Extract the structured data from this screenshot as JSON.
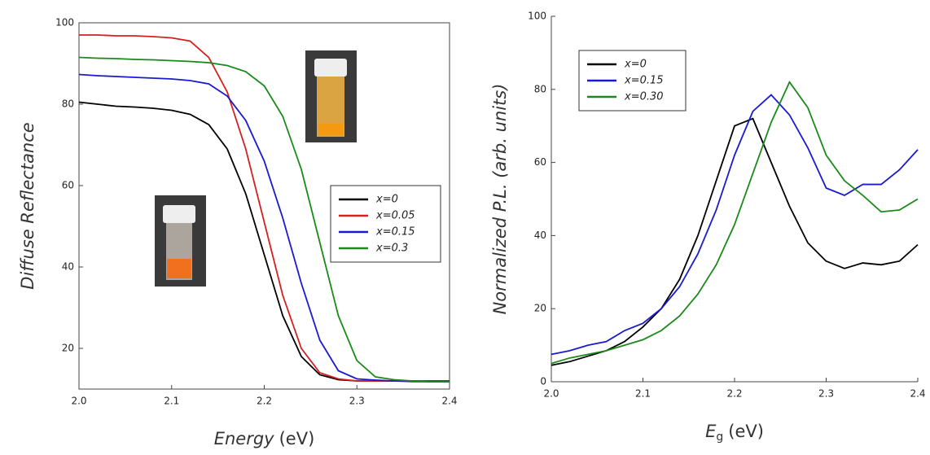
{
  "chart_data": [
    {
      "type": "line",
      "ylabel": "Diffuse Reflectance",
      "xlabel": "Energy",
      "xlabel_unit": "(eV)",
      "x": [
        2.0,
        2.02,
        2.04,
        2.06,
        2.08,
        2.1,
        2.12,
        2.14,
        2.16,
        2.18,
        2.2,
        2.22,
        2.24,
        2.26,
        2.28,
        2.3,
        2.32,
        2.34,
        2.36,
        2.38,
        2.4
      ],
      "series": [
        {
          "name": "x=0",
          "color": "#000000",
          "values": [
            80.5,
            80,
            79.5,
            79.3,
            79,
            78.5,
            77.5,
            75,
            69,
            58,
            43,
            28,
            18,
            13.5,
            12.3,
            12,
            12,
            12,
            12,
            11.8,
            11.8
          ]
        },
        {
          "name": "x=0.05",
          "color": "#d42020",
          "values": [
            97,
            97,
            96.8,
            96.8,
            96.6,
            96.3,
            95.5,
            91.5,
            83,
            69,
            51,
            33,
            20,
            14,
            12.5,
            12,
            12,
            12,
            11.8,
            11.8,
            11.8
          ]
        },
        {
          "name": "x=0.15",
          "color": "#1a1ad0",
          "values": [
            87.3,
            87,
            86.8,
            86.6,
            86.4,
            86.2,
            85.8,
            85,
            82,
            76,
            66,
            52,
            36,
            22,
            14.5,
            12.5,
            12.2,
            12,
            12,
            12,
            12
          ]
        },
        {
          "name": "x=0.3",
          "color": "#1a8a1a",
          "values": [
            91.5,
            91.3,
            91.2,
            91,
            90.9,
            90.7,
            90.5,
            90.2,
            89.5,
            88,
            84.5,
            77,
            64,
            46,
            28,
            17,
            13,
            12.3,
            12,
            11.8,
            11.8
          ]
        }
      ],
      "xlim": [
        2.0,
        2.4
      ],
      "ylim": [
        10,
        100
      ],
      "xticks": [
        {
          "value": 2.0,
          "label": "2.0"
        },
        2.1,
        2.2,
        2.3,
        2.4
      ],
      "yticks": [
        20,
        40,
        60,
        80,
        100
      ],
      "legend": "center right",
      "frame": true
    },
    {
      "type": "line",
      "ylabel": "Normalized P.L. (arb. units)",
      "xlabel": "E",
      "xlabel_subscript": "g",
      "xlabel_unit": "(eV)",
      "x": [
        2.0,
        2.02,
        2.04,
        2.06,
        2.08,
        2.1,
        2.12,
        2.14,
        2.16,
        2.18,
        2.2,
        2.22,
        2.24,
        2.26,
        2.28,
        2.3,
        2.32,
        2.34,
        2.36,
        2.38,
        2.4
      ],
      "series": [
        {
          "name": "x=0",
          "color": "#000000",
          "values": [
            4.5,
            5.5,
            7,
            8.5,
            11,
            15,
            20,
            28,
            40,
            55,
            70,
            72,
            60,
            48,
            38,
            33,
            31,
            32.5,
            32,
            33,
            37.5
          ]
        },
        {
          "name": "x=0.15",
          "color": "#1a1ad0",
          "values": [
            7.5,
            8.5,
            10,
            11,
            14,
            16,
            20,
            26,
            35,
            47,
            62,
            74,
            78.5,
            73,
            64,
            53,
            51,
            54,
            54,
            58,
            63.5
          ]
        },
        {
          "name": "x=0.30",
          "color": "#1a8a1a",
          "values": [
            5,
            6.5,
            7.5,
            8.5,
            10,
            11.5,
            14,
            18,
            24,
            32,
            43,
            57,
            71,
            82,
            75,
            62,
            55,
            51,
            46.5,
            47,
            50
          ]
        }
      ],
      "xlim": [
        2.0,
        2.4
      ],
      "ylim": [
        0,
        100
      ],
      "xticks": [
        {
          "value": 2.0,
          "label": "2.0"
        },
        2.1,
        2.2,
        2.3,
        2.4
      ],
      "yticks": [
        0,
        20,
        40,
        60,
        80,
        100
      ],
      "legend": "upper left",
      "frame": false
    }
  ]
}
